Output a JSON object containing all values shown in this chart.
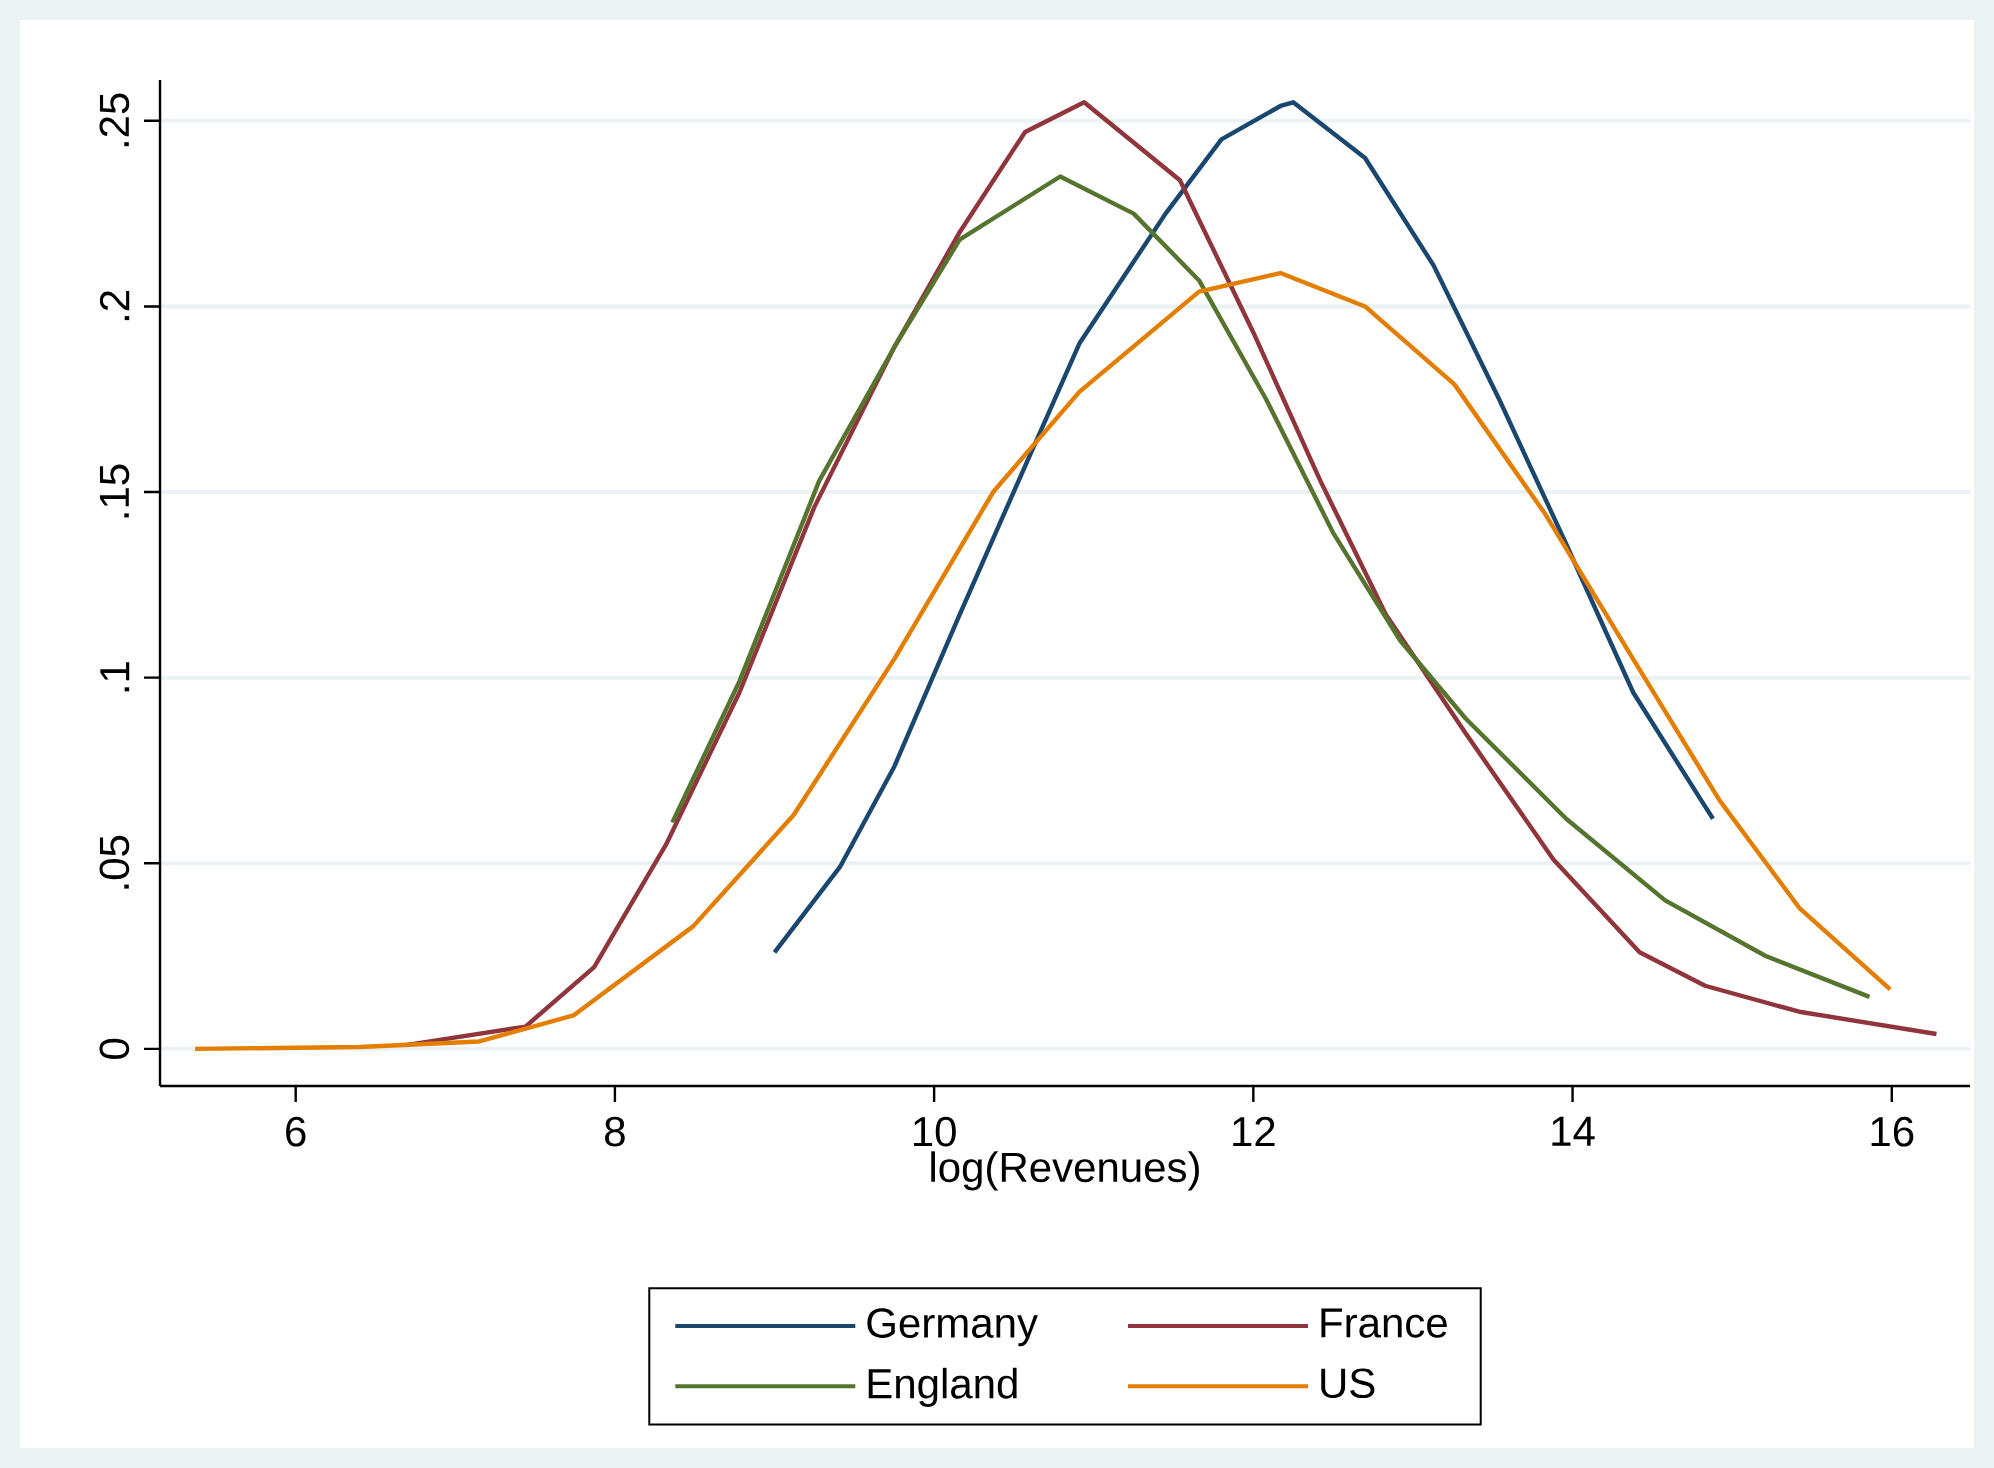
{
  "chart_data": {
    "type": "line",
    "xlabel": "log(Revenues)",
    "xlim": [
      5.15,
      16.49
    ],
    "ylim": [
      -0.01,
      0.261
    ],
    "xticks": [
      6,
      8,
      10,
      12,
      14,
      16
    ],
    "yticks": [
      0,
      {
        "value": 0.05,
        "label": ".05"
      },
      {
        "value": 0.1,
        "label": ".1"
      },
      {
        "value": 0.15,
        "label": ".15"
      },
      {
        "value": 0.2,
        "label": ".2"
      },
      {
        "value": 0.25,
        "label": ".25"
      }
    ],
    "grid": "y",
    "legend": "bottom",
    "series": [
      {
        "name": "Germany",
        "color": "#1a476f",
        "x": [
          9.0,
          9.41,
          9.75,
          10.16,
          10.57,
          10.91,
          11.45,
          11.8,
          12.17,
          12.25,
          12.7,
          13.13,
          13.54,
          13.96,
          14.38,
          14.82,
          14.88
        ],
        "values": [
          0.026,
          0.049,
          0.076,
          0.117,
          0.157,
          0.19,
          0.225,
          0.245,
          0.254,
          0.255,
          0.24,
          0.211,
          0.175,
          0.136,
          0.096,
          0.066,
          0.062
        ]
      },
      {
        "name": "France",
        "color": "#90353b",
        "x": [
          6.69,
          7.44,
          7.87,
          8.32,
          8.78,
          9.25,
          9.75,
          10.16,
          10.57,
          10.94,
          11.54,
          12.0,
          12.42,
          12.83,
          13.33,
          13.88,
          14.42,
          14.83,
          15.42,
          16.28
        ],
        "values": [
          0.001,
          0.006,
          0.022,
          0.055,
          0.096,
          0.146,
          0.189,
          0.22,
          0.247,
          0.255,
          0.234,
          0.193,
          0.153,
          0.117,
          0.085,
          0.051,
          0.026,
          0.017,
          0.01,
          0.004
        ]
      },
      {
        "name": "England",
        "color": "#55752f",
        "x": [
          8.36,
          8.78,
          9.28,
          9.75,
          10.16,
          10.79,
          11.25,
          11.66,
          12.08,
          12.5,
          12.92,
          13.33,
          13.96,
          14.58,
          15.21,
          15.86
        ],
        "values": [
          0.061,
          0.099,
          0.153,
          0.189,
          0.218,
          0.235,
          0.225,
          0.207,
          0.175,
          0.139,
          0.11,
          0.089,
          0.062,
          0.04,
          0.025,
          0.014
        ]
      },
      {
        "name": "US",
        "color": "#e37e00",
        "x": [
          5.37,
          6.4,
          7.15,
          7.74,
          8.49,
          9.12,
          9.75,
          10.37,
          10.91,
          11.66,
          12.17,
          12.7,
          13.26,
          13.83,
          14.38,
          14.92,
          15.42,
          15.99
        ],
        "values": [
          0.0,
          0.0005,
          0.002,
          0.009,
          0.033,
          0.063,
          0.105,
          0.15,
          0.177,
          0.204,
          0.209,
          0.2,
          0.179,
          0.144,
          0.105,
          0.067,
          0.038,
          0.016
        ]
      }
    ]
  }
}
